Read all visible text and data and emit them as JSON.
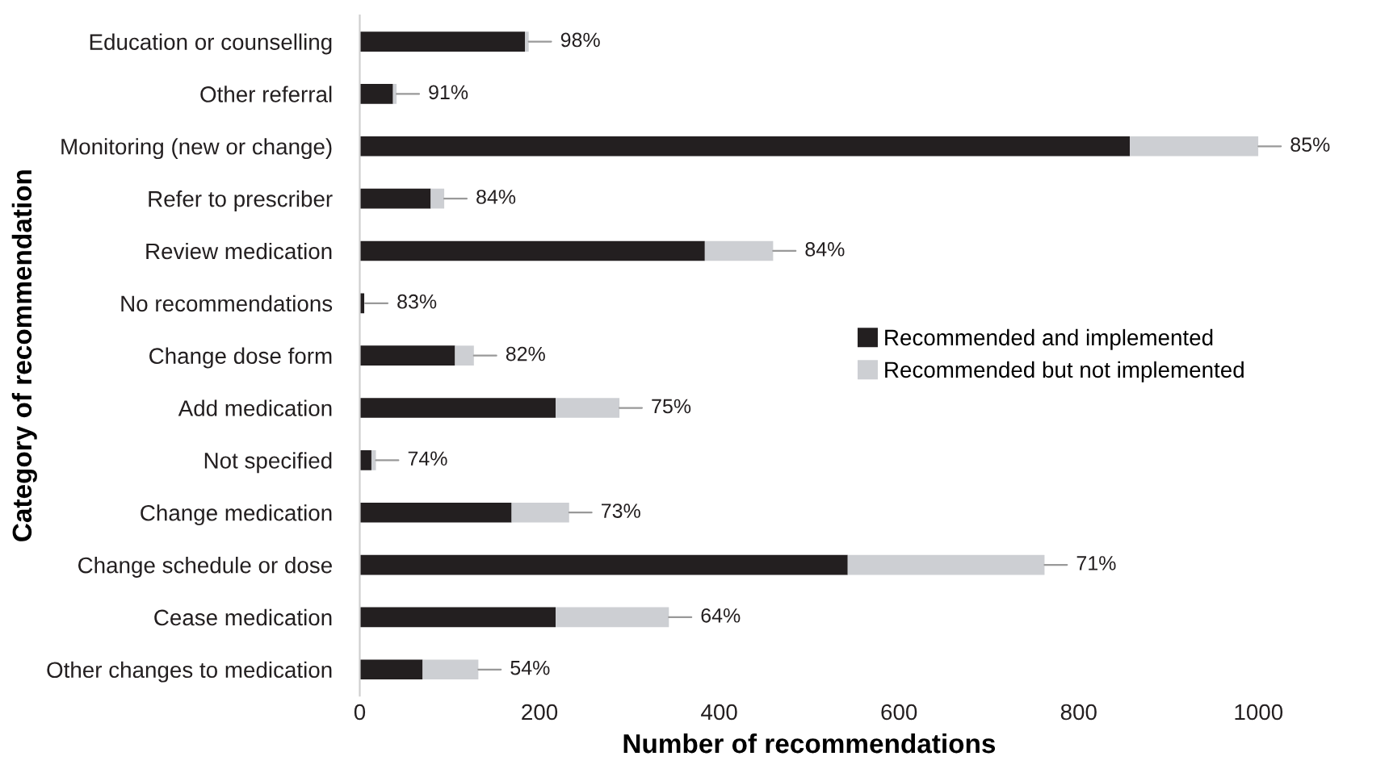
{
  "chart_data": {
    "type": "bar",
    "orientation": "horizontal",
    "stacked": true,
    "xlabel": "Number of recommendations",
    "ylabel": "Category of recommendation",
    "categories": [
      "Education or counselling",
      "Other referral",
      "Monitoring (new or change)",
      "Refer to prescriber",
      "Review medication",
      "No recommendations",
      "Change dose form",
      "Add medication",
      "Not specified",
      "Change medication",
      "Change schedule or dose",
      "Cease medication",
      "Other changes to medication"
    ],
    "series": [
      {
        "name": "Recommended and implemented",
        "color": "#231f20",
        "values": [
          184,
          37,
          857,
          79,
          384,
          5,
          106,
          218,
          13,
          169,
          543,
          218,
          70
        ]
      },
      {
        "name": "Recommended but not implemented",
        "color": "#cdcfd3",
        "values": [
          4,
          4,
          143,
          15,
          76,
          null,
          21,
          71,
          5,
          64,
          219,
          126,
          62
        ]
      }
    ],
    "xlim": [
      0,
      1000
    ],
    "xticks": [
      0,
      200,
      400,
      600,
      800,
      1000
    ],
    "grid": false,
    "legend": "right",
    "annotations": [
      {
        "text": "98%",
        "x": 188,
        "y": "Education or counselling"
      },
      {
        "text": "91%",
        "x": 41,
        "y": "Other referral"
      },
      {
        "text": "85%",
        "x": 1000,
        "y": "Monitoring (new or change)"
      },
      {
        "text": "84%",
        "x": 94,
        "y": "Refer to prescriber"
      },
      {
        "text": "84%",
        "x": 460,
        "y": "Review medication"
      },
      {
        "text": "83%",
        "x": 6,
        "y": "No recommendations"
      },
      {
        "text": "82%",
        "x": 127,
        "y": "Change dose form"
      },
      {
        "text": "75%",
        "x": 289,
        "y": "Add medication"
      },
      {
        "text": "74%",
        "x": 18,
        "y": "Not specified"
      },
      {
        "text": "73%",
        "x": 233,
        "y": "Change medication"
      },
      {
        "text": "71%",
        "x": 762,
        "y": "Change schedule or dose"
      },
      {
        "text": "64%",
        "x": 344,
        "y": "Cease medication"
      },
      {
        "text": "54%",
        "x": 132,
        "y": "Other changes to medication"
      }
    ]
  }
}
